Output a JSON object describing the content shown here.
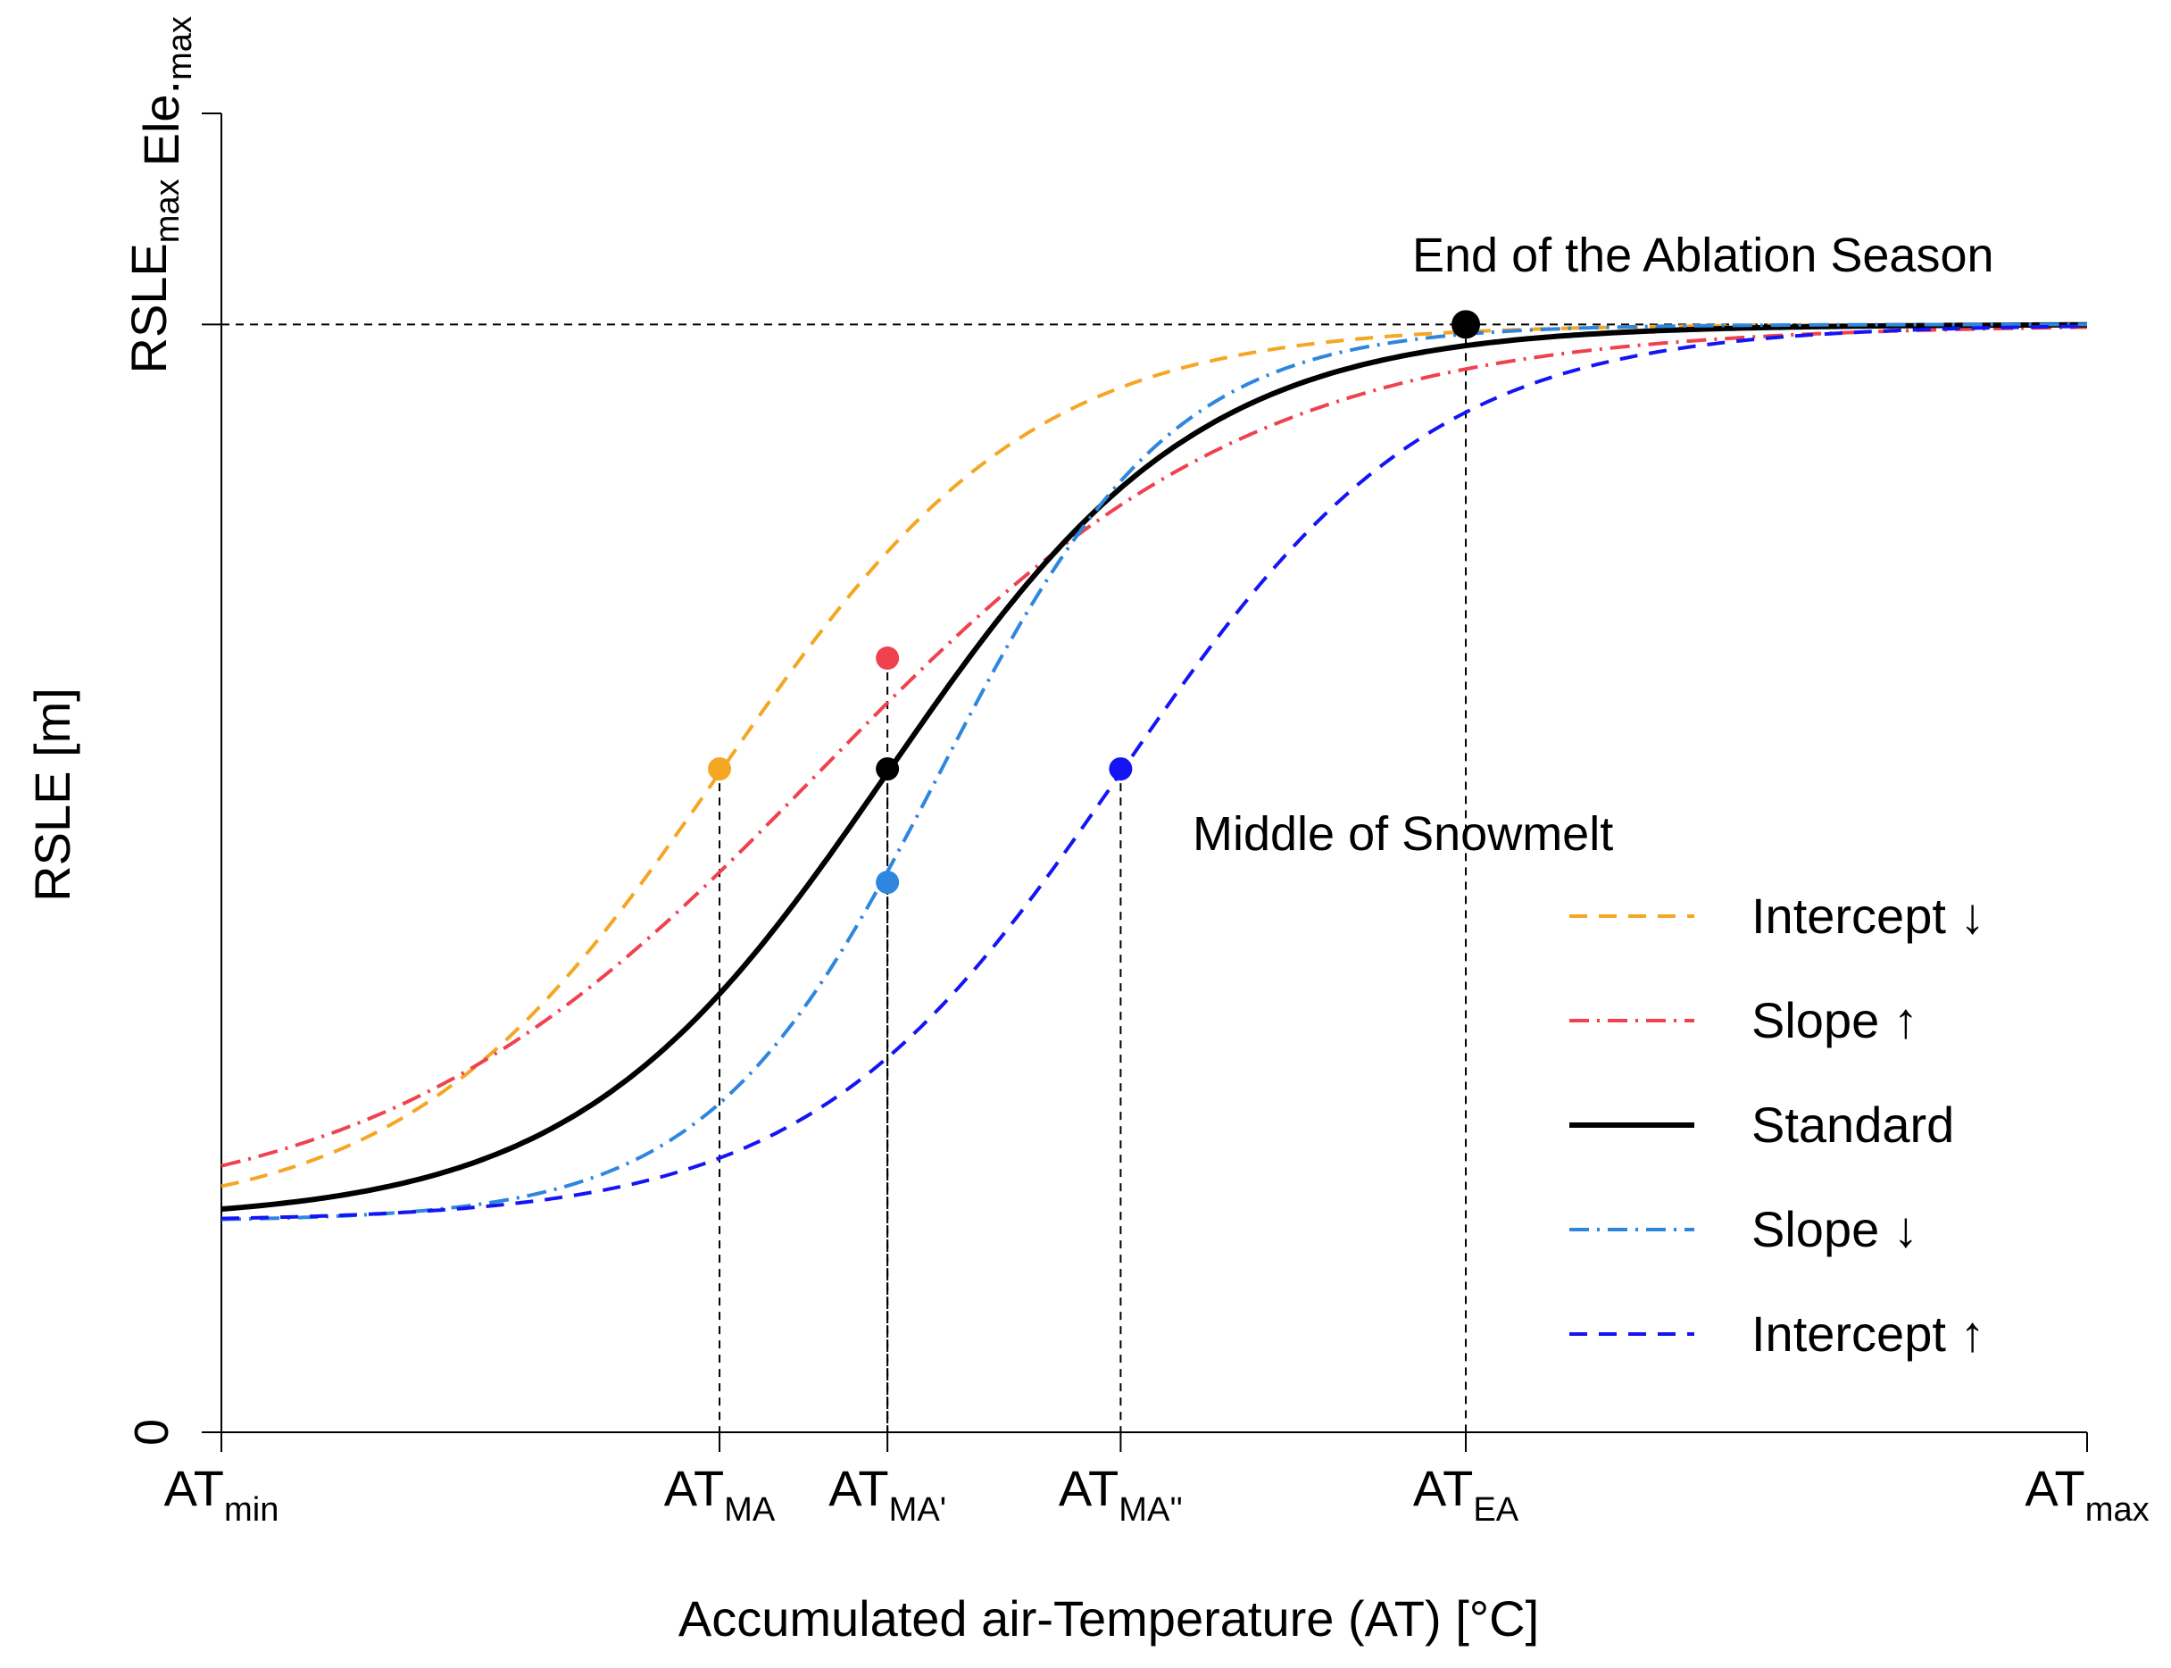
{
  "chart_data": {
    "type": "line",
    "title": "",
    "xlabel": "Accumulated air-Temperature (AT) [°C]",
    "ylabel": "RSLE [m]",
    "xlim": [
      0,
      100
    ],
    "ylim": [
      0,
      100
    ],
    "grid": false,
    "y_ticks": [
      {
        "value": 0,
        "label": "0"
      },
      {
        "value": 100,
        "label": ""
      }
    ],
    "y_marker_labels": [
      {
        "value": 84,
        "main": "RSLE",
        "sub": "max"
      },
      {
        "value": 100,
        "main": "Ele.",
        "sub": "max"
      }
    ],
    "x_ticks": [
      {
        "value": 0,
        "main": "AT",
        "sub": "min"
      },
      {
        "value": 26.7,
        "main": "AT",
        "sub": "MA"
      },
      {
        "value": 35.7,
        "main": "AT",
        "sub": "MA'"
      },
      {
        "value": 48.2,
        "main": "AT",
        "sub": "MA''"
      },
      {
        "value": 66.7,
        "main": "AT",
        "sub": "EA"
      },
      {
        "value": 100,
        "main": "AT",
        "sub": "max"
      }
    ],
    "reference_line": {
      "y": 84,
      "label": "RSLE max"
    },
    "series": [
      {
        "name": "Intercept ↓",
        "color": "#F5A623",
        "dash": "dashed",
        "x0": 26.7,
        "k": 0.12,
        "y0": 16,
        "y1": 84,
        "midpoint": {
          "x": 26.7,
          "y": 50.3
        }
      },
      {
        "name": "Slope ↑",
        "color": "#F0414F",
        "dash": "dotdash",
        "x0": 32.0,
        "k": 0.085,
        "y0": 16,
        "y1": 84,
        "midpoint": {
          "x": 35.7,
          "y": 58.7
        }
      },
      {
        "name": "Standard",
        "color": "#000000",
        "dash": "solid",
        "x0": 35.7,
        "k": 0.12,
        "y0": 16,
        "y1": 84,
        "midpoint": {
          "x": 35.7,
          "y": 50.3
        }
      },
      {
        "name": "Slope ↓",
        "color": "#2E86DE",
        "dash": "dotdash",
        "x0": 38.5,
        "k": 0.16,
        "y0": 16,
        "y1": 84,
        "midpoint": {
          "x": 35.7,
          "y": 41.7
        }
      },
      {
        "name": "Intercept ↑",
        "color": "#1414F5",
        "dash": "dashed",
        "x0": 48.2,
        "k": 0.12,
        "y0": 16,
        "y1": 84,
        "midpoint": {
          "x": 48.2,
          "y": 50.3
        }
      }
    ],
    "end_point": {
      "x": 66.7,
      "y": 84,
      "color": "#000000"
    },
    "annotations": {
      "end_of_ablation": "End of the Ablation Season",
      "middle_of_snowmelt": "Middle of Snowmelt"
    },
    "legend": {
      "placement": "right"
    }
  }
}
